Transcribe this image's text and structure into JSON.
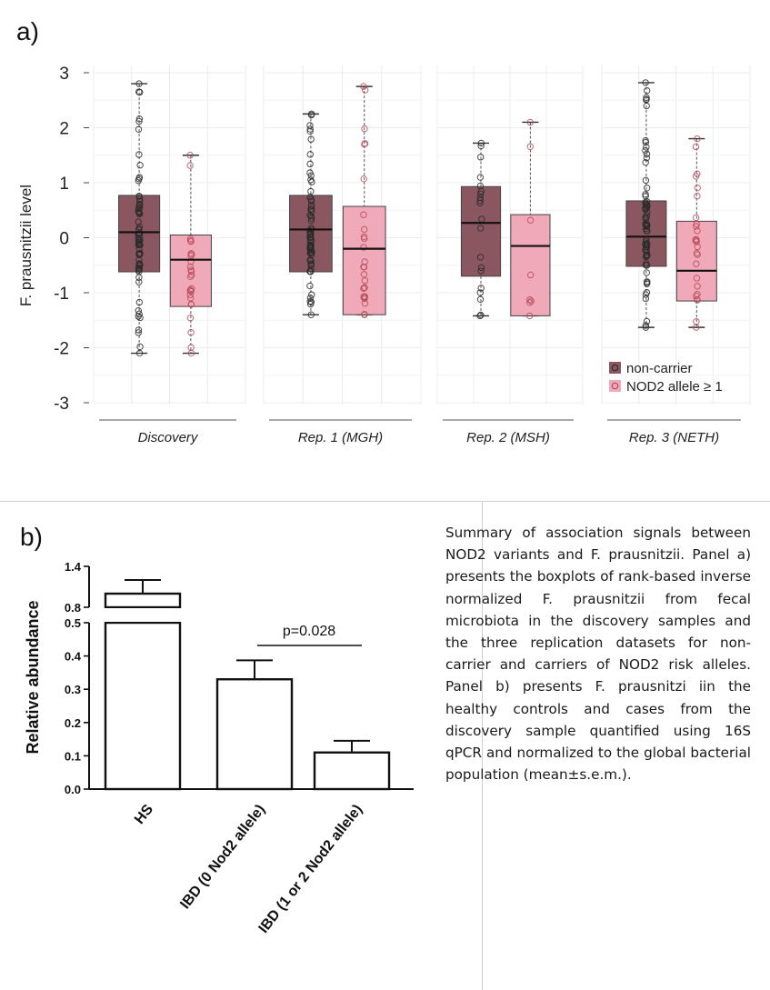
{
  "panel_a_label": "a)",
  "panel_b_label": "b)",
  "caption": "Summary of association signals between NOD2 variants and F. prausnitzii. Panel a) presents the boxplots of rank-based inverse normalized F. prausnitzii from fecal microbiota in the discovery samples and the three replication datasets for non-carrier and carriers of NOD2 risk alleles. Panel b) presents F. prausnitzi iin the healthy controls and cases from the discovery sample quantified using 16S qPCR and normalized to the global bacterial population (mean±s.e.m.).",
  "colors": {
    "noncarrier": "#8a5660",
    "carrier": "#f0a9b8",
    "noncarrier_point": "#2b2b2b",
    "carrier_point": "#b84b5c"
  },
  "chart_data": [
    {
      "type": "box",
      "ylabel": "F. prausnitzii level",
      "ylim": [
        -3,
        3
      ],
      "yticks": [
        3,
        2,
        1,
        0,
        -1,
        -2,
        -3
      ],
      "legend": {
        "position": "bottom-right",
        "entries": [
          "non-carrier",
          "NOD2 allele ≥ 1"
        ]
      },
      "grid": true,
      "facets": [
        {
          "name": "Discovery",
          "groups": [
            {
              "series": "non-carrier",
              "min": -2.1,
              "q1": -0.62,
              "median": 0.1,
              "q3": 0.77,
              "max": 2.8
            },
            {
              "series": "NOD2 allele ≥ 1",
              "min": -2.1,
              "q1": -1.25,
              "median": -0.4,
              "q3": 0.05,
              "max": 1.5
            }
          ]
        },
        {
          "name": "Rep. 1 (MGH)",
          "groups": [
            {
              "series": "non-carrier",
              "min": -1.4,
              "q1": -0.62,
              "median": 0.15,
              "q3": 0.77,
              "max": 2.25
            },
            {
              "series": "NOD2 allele ≥ 1",
              "min": -1.4,
              "q1": -1.4,
              "median": -0.2,
              "q3": 0.57,
              "max": 2.75
            }
          ]
        },
        {
          "name": "Rep. 2 (MSH)",
          "groups": [
            {
              "series": "non-carrier",
              "min": -1.42,
              "q1": -0.7,
              "median": 0.27,
              "q3": 0.93,
              "max": 1.72
            },
            {
              "series": "NOD2 allele ≥ 1",
              "min": -1.42,
              "q1": -1.42,
              "median": -0.15,
              "q3": 0.42,
              "max": 2.1
            }
          ]
        },
        {
          "name": "Rep. 3 (NETH)",
          "groups": [
            {
              "series": "non-carrier",
              "min": -1.63,
              "q1": -0.52,
              "median": 0.02,
              "q3": 0.67,
              "max": 2.82
            },
            {
              "series": "NOD2 allele ≥ 1",
              "min": -1.63,
              "q1": -1.15,
              "median": -0.6,
              "q3": 0.3,
              "max": 1.8
            }
          ]
        }
      ]
    },
    {
      "type": "bar",
      "ylabel": "Relative abundance",
      "categories": [
        "HS",
        "IBD (0 Nod2 allele)",
        "IBD (1 or 2 Nod2 allele)"
      ],
      "values": [
        1.0,
        0.33,
        0.11
      ],
      "errors": [
        0.2,
        0.057,
        0.035
      ],
      "yticks_lower": [
        "0.0",
        "0.1",
        "0.2",
        "0.3",
        "0.4",
        "0.5"
      ],
      "yticks_upper": [
        "0.8",
        "1.4"
      ],
      "axis_break": [
        0.5,
        0.8
      ],
      "annotation": "p=0.028"
    }
  ]
}
